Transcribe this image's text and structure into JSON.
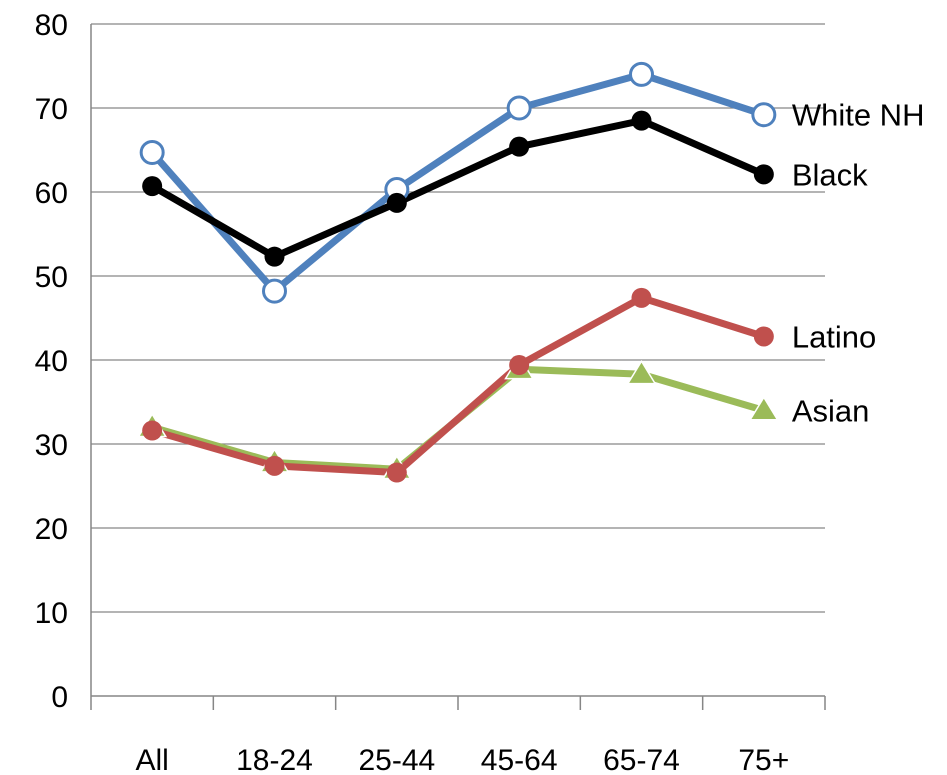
{
  "chart_data": {
    "type": "line",
    "categories": [
      "All",
      "18-24",
      "25-44",
      "45-64",
      "65-74",
      "75+"
    ],
    "ylim": [
      0,
      80
    ],
    "yticks": [
      0,
      10,
      20,
      30,
      40,
      50,
      60,
      70,
      80
    ],
    "grid": true,
    "legend": "inline-right",
    "series": [
      {
        "name": "White NH",
        "values": [
          64.7,
          48.2,
          60.3,
          70.0,
          74.0,
          69.2
        ],
        "color": "#4F81BD",
        "marker": "hollow-circle"
      },
      {
        "name": "Black",
        "values": [
          60.7,
          52.3,
          58.7,
          65.4,
          68.5,
          62.1
        ],
        "color": "#000000",
        "marker": "filled-circle"
      },
      {
        "name": "Latino",
        "values": [
          31.6,
          27.4,
          26.6,
          39.4,
          47.4,
          42.8
        ],
        "color": "#C0504D",
        "marker": "filled-circle"
      },
      {
        "name": "Asian",
        "values": [
          32.0,
          27.8,
          27.0,
          38.9,
          38.3,
          34.0
        ],
        "color": "#9BBB59",
        "marker": "triangle"
      }
    ]
  }
}
